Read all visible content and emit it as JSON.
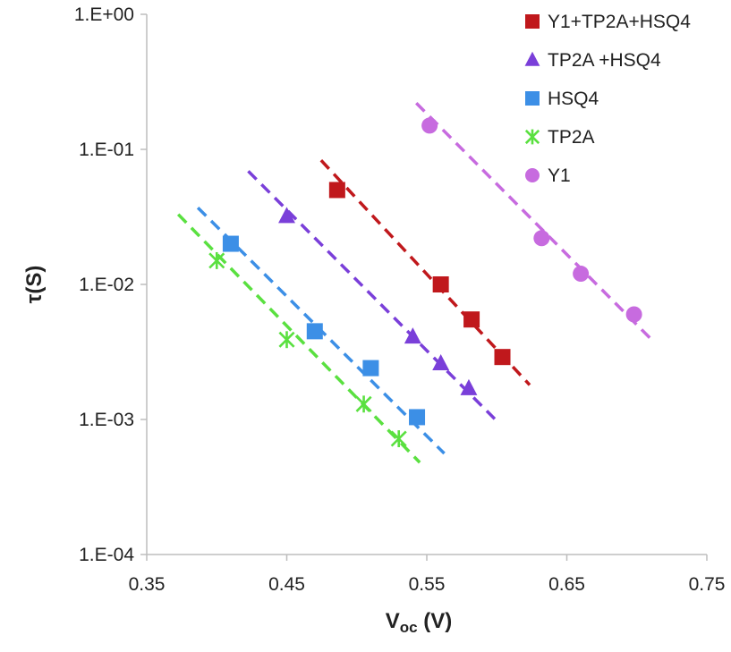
{
  "chart_data": {
    "type": "scatter",
    "xlabel": "V",
    "xlabel_sub": "oc",
    "xlabel_unit": " (V)",
    "ylabel": "τ(S)",
    "xlim": [
      0.35,
      0.75
    ],
    "ylim": [
      0.0001,
      1
    ],
    "yscale": "log",
    "x_ticks": [
      "0.35",
      "0.45",
      "0.55",
      "0.65",
      "0.75"
    ],
    "y_ticks": [
      "1.E-04",
      "1.E-03",
      "1.E-02",
      "1.E-01",
      "1.E+00"
    ],
    "grid": false,
    "legend_position": "top-right",
    "series": [
      {
        "name": "Y1+TP2A+HSQ4",
        "marker": "square",
        "color": "#c0181c",
        "x": [
          0.486,
          0.56,
          0.582,
          0.604
        ],
        "y": [
          0.05,
          0.01,
          0.0055,
          0.0029
        ],
        "fit": {
          "x": [
            0.4745,
            0.6235
          ],
          "y": [
            0.083,
            0.0018
          ]
        }
      },
      {
        "name": "TP2A +HSQ4",
        "marker": "triangle",
        "color": "#7a3fd9",
        "x": [
          0.45,
          0.54,
          0.56,
          0.58
        ],
        "y": [
          0.032,
          0.0041,
          0.0026,
          0.0017
        ],
        "fit": {
          "x": [
            0.4225,
            0.5985
          ],
          "y": [
            0.069,
            0.00101
          ]
        }
      },
      {
        "name": "HSQ4",
        "marker": "square",
        "color": "#3c8fe6",
        "x": [
          0.41,
          0.47,
          0.51,
          0.543
        ],
        "y": [
          0.02,
          0.0045,
          0.0024,
          0.00104
        ],
        "fit": {
          "x": [
            0.3865,
            0.5625
          ],
          "y": [
            0.037,
            0.00056
          ]
        }
      },
      {
        "name": "TP2A",
        "marker": "asterisk",
        "color": "#5ae040",
        "x": [
          0.4,
          0.45,
          0.505,
          0.53
        ],
        "y": [
          0.015,
          0.0039,
          0.0013,
          0.00072
        ],
        "fit": {
          "x": [
            0.3725,
            0.545
          ],
          "y": [
            0.033,
            0.00048
          ]
        }
      },
      {
        "name": "Y1",
        "marker": "circle",
        "color": "#c76bdf",
        "x": [
          0.552,
          0.632,
          0.66,
          0.698
        ],
        "y": [
          0.15,
          0.022,
          0.012,
          0.006
        ],
        "fit": {
          "x": [
            0.5425,
            0.7095
          ],
          "y": [
            0.22,
            0.004
          ]
        }
      }
    ]
  }
}
